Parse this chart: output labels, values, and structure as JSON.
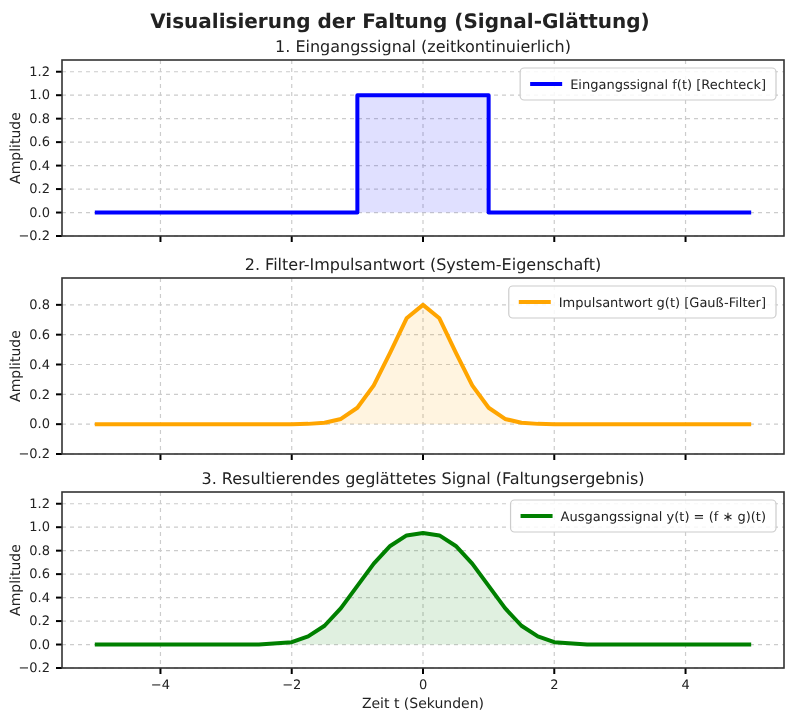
{
  "chart_data": [
    {
      "type": "area",
      "title": "Visualisierung der Faltung (Signal-Glättung)",
      "subtitle": "1. Eingangssignal (zeitkontinuierlich)",
      "ylabel": "Amplitude",
      "series": [
        {
          "name": "Eingangssignal f(t) [Rechteck]",
          "color": "#0000ff",
          "x": [
            -5,
            -1,
            -1,
            1,
            1,
            5
          ],
          "values": [
            0,
            0,
            1,
            1,
            0,
            0
          ]
        }
      ],
      "xlim": [
        -5.5,
        5.5
      ],
      "xticks": [
        -4,
        -2,
        0,
        2,
        4
      ],
      "ylim": [
        -0.2,
        1.3
      ],
      "yticks": [
        {
          "value": -0.2,
          "label": "−0.2"
        },
        {
          "value": 0,
          "label": "0.0"
        },
        {
          "value": 0.2,
          "label": "0.2"
        },
        {
          "value": 0.4,
          "label": "0.4"
        },
        {
          "value": 0.6,
          "label": "0.6"
        },
        {
          "value": 0.8,
          "label": "0.8"
        },
        {
          "value": 1,
          "label": "1.0"
        },
        {
          "value": 1.2,
          "label": "1.2"
        }
      ],
      "grid": true,
      "legend": "top right",
      "tick_labels": "y"
    },
    {
      "type": "area",
      "title": "2. Filter-Impulsantwort (System-Eigenschaft)",
      "ylabel": "Amplitude",
      "series": [
        {
          "name": "Impulsantwort g(t) [Gauß-Filter]",
          "color": "#ffa500",
          "x": [
            -5,
            -2,
            -1.75,
            -1.5,
            -1.25,
            -1,
            -0.75,
            -0.5,
            -0.25,
            0,
            0.25,
            0.5,
            0.75,
            1,
            1.25,
            1.5,
            1.75,
            2,
            5
          ],
          "values": [
            0,
            0,
            0.002,
            0.01,
            0.035,
            0.11,
            0.26,
            0.48,
            0.71,
            0.8,
            0.71,
            0.48,
            0.26,
            0.11,
            0.035,
            0.01,
            0.002,
            0,
            0
          ]
        }
      ],
      "xlim": [
        -5.5,
        5.5
      ],
      "xticks": [
        -4,
        -2,
        0,
        2,
        4
      ],
      "ylim": [
        -0.2,
        0.98
      ],
      "yticks": [
        {
          "value": -0.2,
          "label": "−0.2"
        },
        {
          "value": 0,
          "label": "0.0"
        },
        {
          "value": 0.2,
          "label": "0.2"
        },
        {
          "value": 0.4,
          "label": "0.4"
        },
        {
          "value": 0.6,
          "label": "0.6"
        },
        {
          "value": 0.8,
          "label": "0.8"
        }
      ],
      "grid": true,
      "legend": "top right",
      "tick_labels": "y"
    },
    {
      "type": "area",
      "title": "3. Resultierendes geglättetes Signal (Faltungsergebnis)",
      "xlabel": "Zeit t (Sekunden)",
      "ylabel": "Amplitude",
      "series": [
        {
          "name": "Ausgangssignal y(t) = (f ∗ g)(t)",
          "color": "#008000",
          "x": [
            -5,
            -2.5,
            -2,
            -1.75,
            -1.5,
            -1.25,
            -1,
            -0.75,
            -0.5,
            -0.25,
            0,
            0.25,
            0.5,
            0.75,
            1,
            1.25,
            1.5,
            1.75,
            2,
            2.5,
            5
          ],
          "values": [
            0,
            0,
            0.02,
            0.07,
            0.16,
            0.31,
            0.5,
            0.69,
            0.84,
            0.93,
            0.95,
            0.93,
            0.84,
            0.69,
            0.5,
            0.31,
            0.16,
            0.07,
            0.02,
            0,
            0
          ]
        }
      ],
      "xlim": [
        -5.5,
        5.5
      ],
      "xticks": [
        -4,
        -2,
        0,
        2,
        4
      ],
      "ylim": [
        -0.2,
        1.3
      ],
      "yticks": [
        {
          "value": -0.2,
          "label": "−0.2"
        },
        {
          "value": 0,
          "label": "0.0"
        },
        {
          "value": 0.2,
          "label": "0.2"
        },
        {
          "value": 0.4,
          "label": "0.4"
        },
        {
          "value": 0.6,
          "label": "0.6"
        },
        {
          "value": 0.8,
          "label": "0.8"
        },
        {
          "value": 1,
          "label": "1.0"
        },
        {
          "value": 1.2,
          "label": "1.2"
        }
      ],
      "grid": true,
      "legend": "top right"
    }
  ]
}
